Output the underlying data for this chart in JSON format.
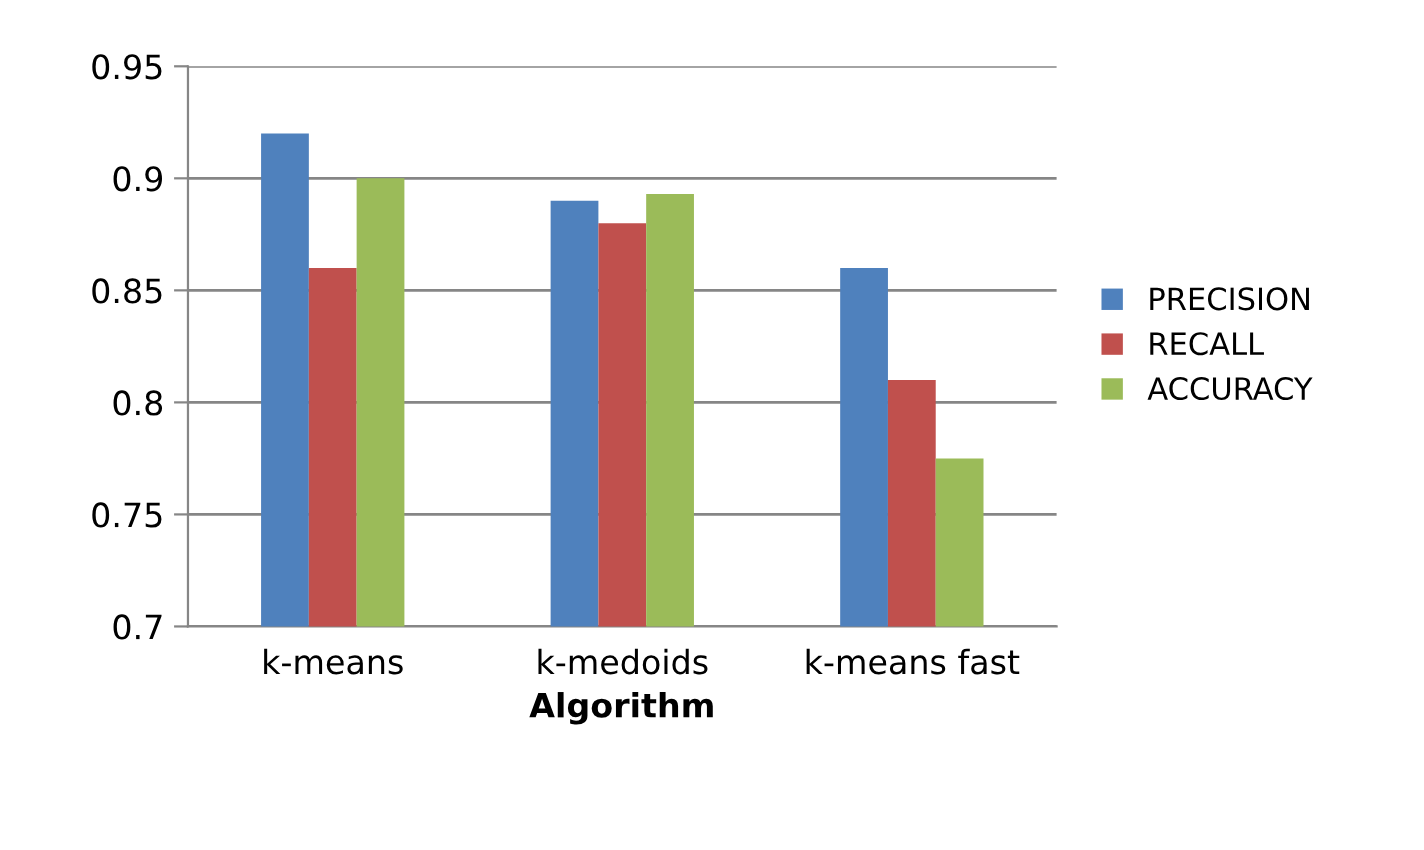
{
  "chart_data": {
    "type": "bar",
    "xlabel": "Algorithm",
    "categories": [
      "k-means",
      "k-medoids",
      "k-means fast"
    ],
    "series": [
      {
        "name": "PRECISION",
        "color": "#4f81bd",
        "values": [
          0.92,
          0.89,
          0.86
        ]
      },
      {
        "name": "RECALL",
        "color": "#c0504d",
        "values": [
          0.86,
          0.88,
          0.81
        ]
      },
      {
        "name": "ACCURACY",
        "color": "#9bbb59",
        "values": [
          0.9,
          0.893,
          0.775
        ]
      }
    ],
    "ylim": [
      0.7,
      0.95
    ],
    "yticks": [
      0.7,
      0.75,
      0.8,
      0.85,
      0.9,
      0.95
    ],
    "grid": "y",
    "legend": "right"
  }
}
